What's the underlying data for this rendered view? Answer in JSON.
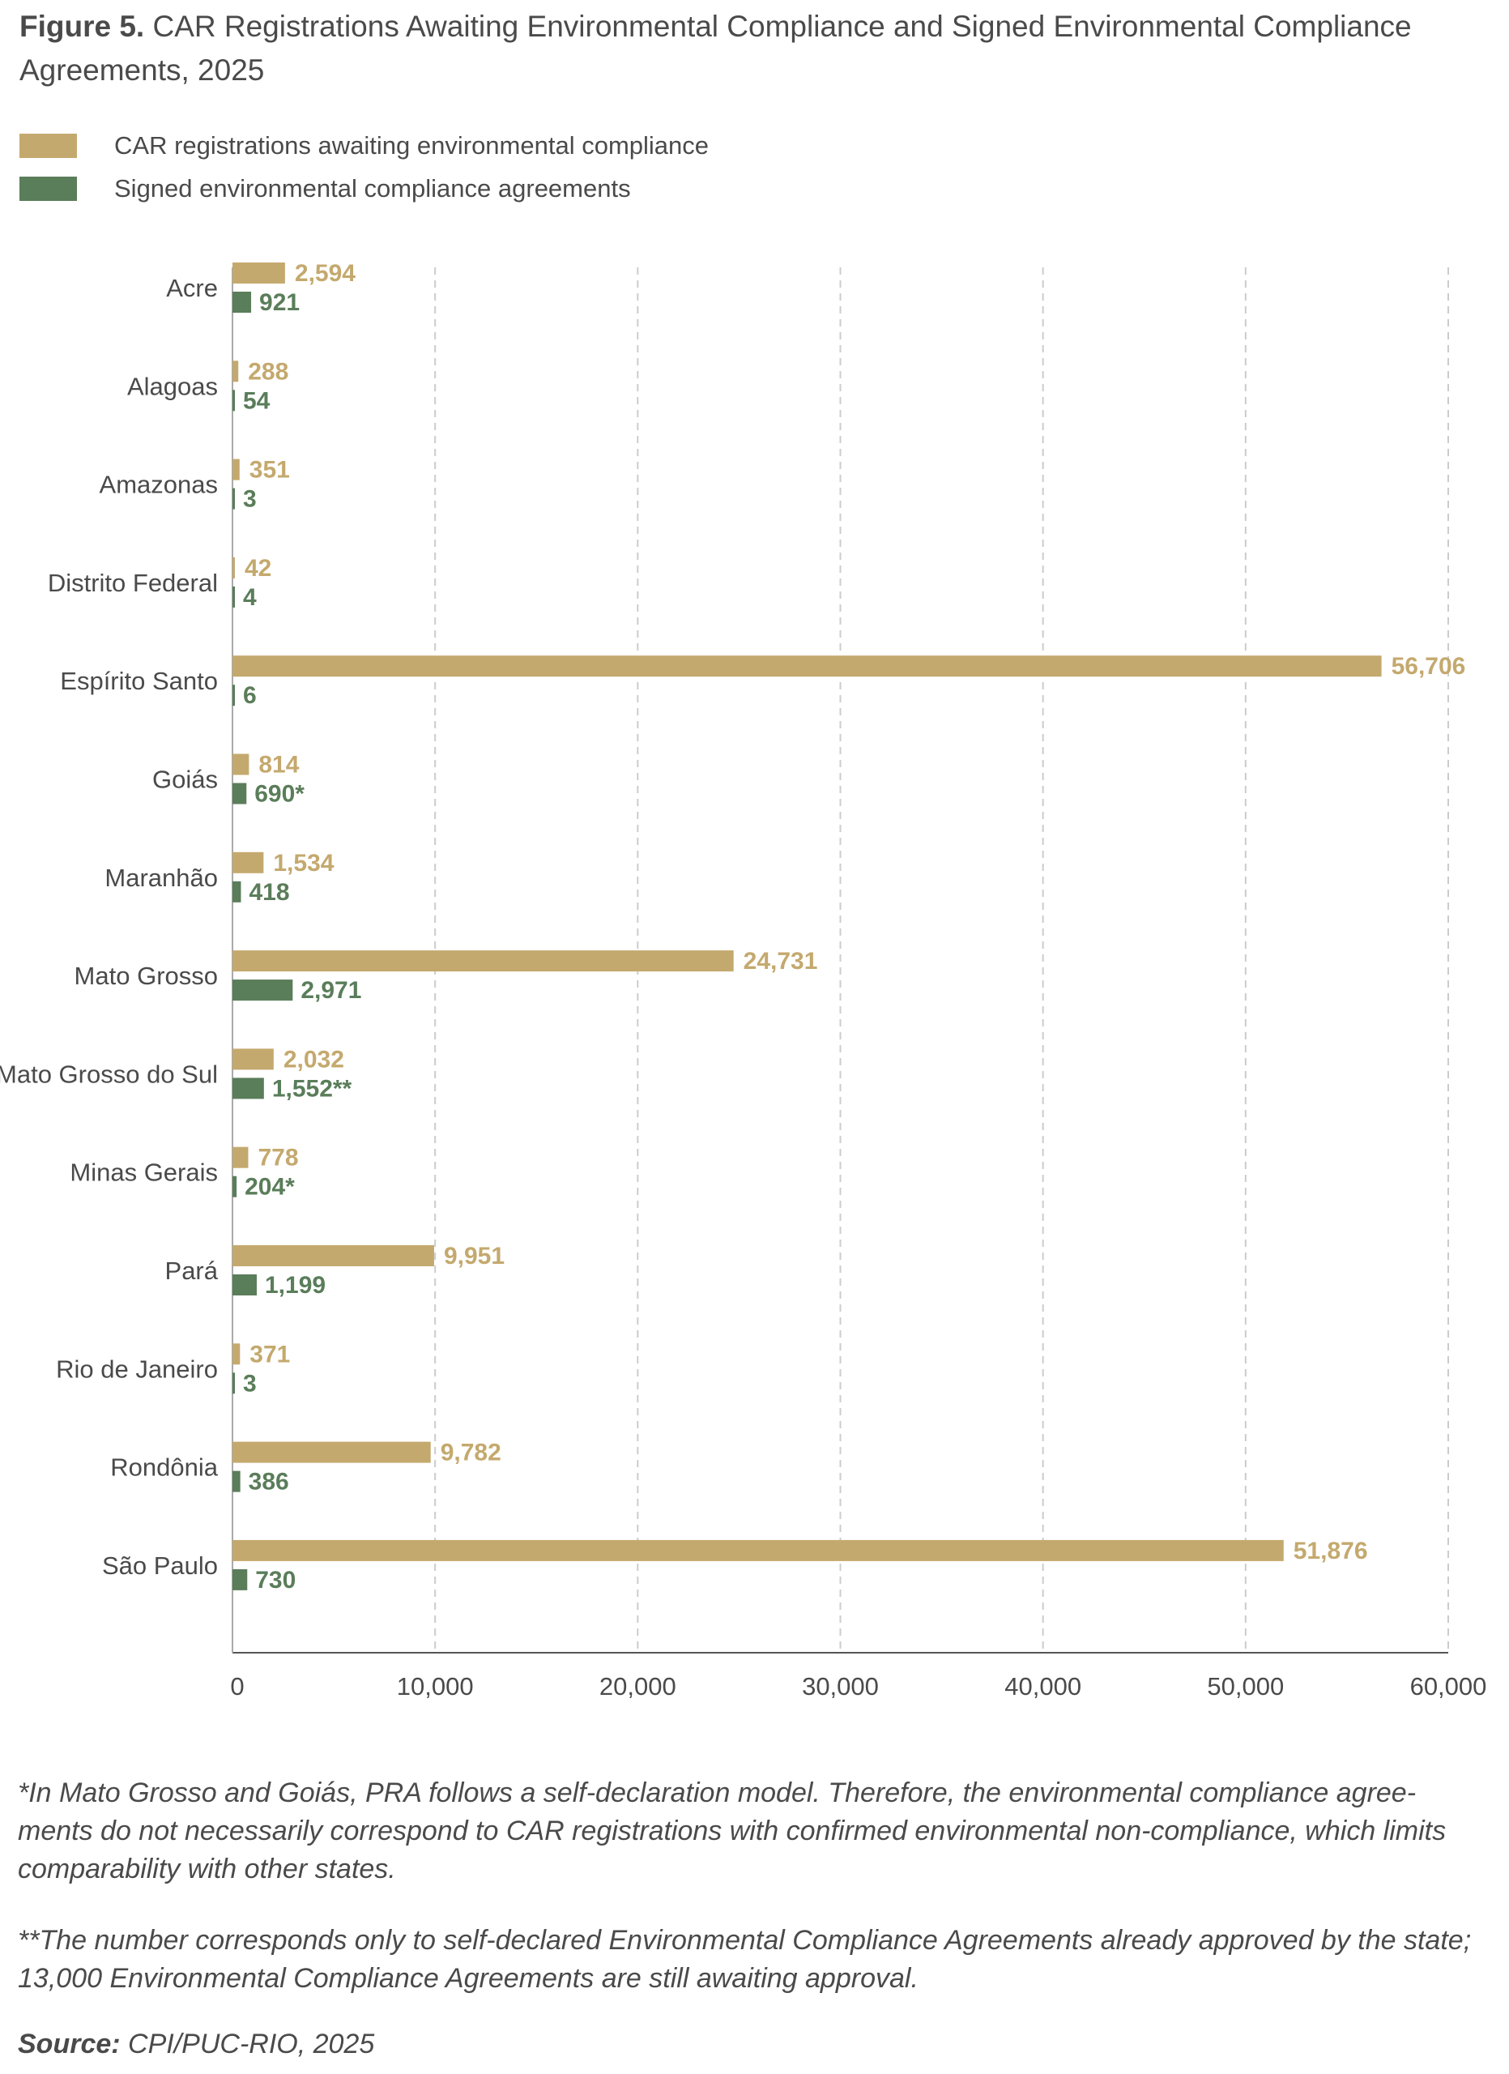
{
  "title": {
    "prefix": "Figure 5.",
    "text": "CAR Registrations Awaiting Environmental Compliance and Signed Environmental Compliance Agreements, 2025"
  },
  "colors": {
    "awaiting": "#c4a96e",
    "signed": "#5a7d5a",
    "text": "#4a4a4a",
    "grid": "#cccccc"
  },
  "chart_data": {
    "type": "bar",
    "orientation": "horizontal",
    "title": "CAR Registrations Awaiting Environmental Compliance and Signed Environmental Compliance Agreements, 2025",
    "xlabel": "",
    "ylabel": "",
    "xlim": [
      0,
      60000
    ],
    "xticks": [
      0,
      10000,
      20000,
      30000,
      40000,
      50000,
      60000
    ],
    "xtick_labels": [
      "0",
      "10,000",
      "20,000",
      "30,000",
      "40,000",
      "50,000",
      "60,000"
    ],
    "grid": "vertical dashed",
    "legend_position": "top-left",
    "categories": [
      "Acre",
      "Alagoas",
      "Amazonas",
      "Distrito Federal",
      "Espírito Santo",
      "Goiás",
      "Maranhão",
      "Mato Grosso",
      "Mato Grosso do Sul",
      "Minas Gerais",
      "Pará",
      "Rio de Janeiro",
      "Rondônia",
      "São Paulo"
    ],
    "series": [
      {
        "name": "CAR registrations awaiting environmental compliance",
        "values": [
          2594,
          288,
          351,
          42,
          56706,
          814,
          1534,
          24731,
          2032,
          778,
          9951,
          371,
          9782,
          51876
        ],
        "labels": [
          "2,594",
          "288",
          "351",
          "42",
          "56,706",
          "814",
          "1,534",
          "24,731",
          "2,032",
          "778",
          "9,951",
          "371",
          "9,782",
          "51,876"
        ]
      },
      {
        "name": "Signed environmental compliance agreements",
        "values": [
          921,
          54,
          3,
          4,
          6,
          690,
          418,
          2971,
          1552,
          204,
          1199,
          3,
          386,
          730
        ],
        "labels": [
          "921",
          "54",
          "3",
          "4",
          "6",
          "690*",
          "418",
          "2,971",
          "1,552**",
          "204*",
          "1,199",
          "3",
          "386",
          "730"
        ]
      }
    ]
  },
  "notes": {
    "note1": "*In Mato Grosso and Goiás, PRA follows a self-declaration model. Therefore, the environmental compliance agree-ments do not necessarily correspond to CAR registrations with confirmed environmental non-compliance, which limits comparability with other states.",
    "note2": "**The number corresponds only to self-declared Environmental Compliance Agreements already approved by the state; 13,000 Environmental Compliance Agreements are still awaiting approval."
  },
  "source": {
    "label": "Source:",
    "text": "CPI/PUC-RIO, 2025"
  }
}
